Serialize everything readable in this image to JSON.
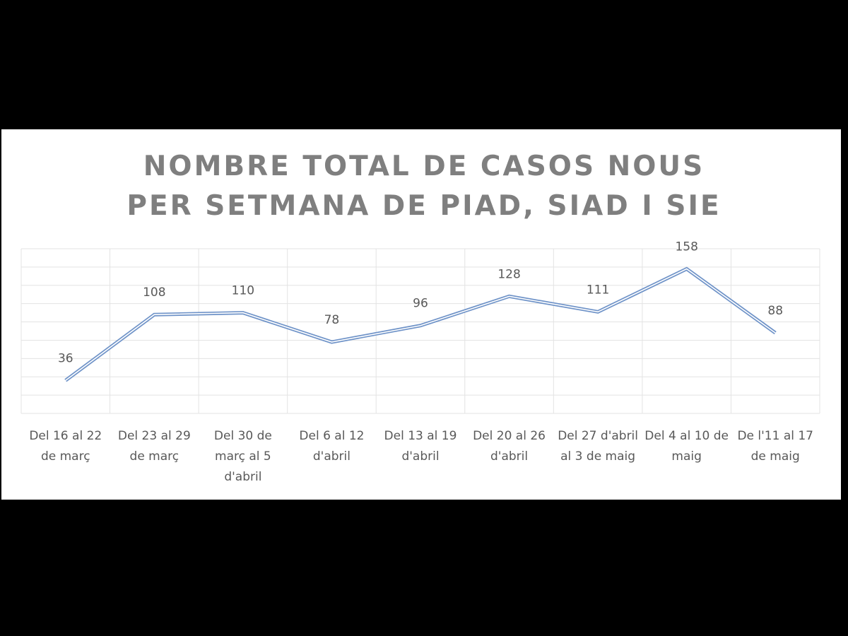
{
  "chart_data": {
    "type": "line",
    "title": "NOMBRE TOTAL DE CASOS NOUS PER SETMANA DE PIAD, SIAD I SIE",
    "categories": [
      "Del 16 al 22 de març",
      "Del 23 al 29 de març",
      "Del 30 de març al 5 d'abril",
      "Del 6 al 12 d'abril",
      "Del 13 al 19 d'abril",
      "Del 20 al 26 d'abril",
      "Del 27 d'abril al 3 de maig",
      "Del 4 al 10 de maig",
      "De l'11 al 17 de maig"
    ],
    "values": [
      36,
      108,
      110,
      78,
      96,
      128,
      111,
      158,
      88
    ],
    "color": "#6f93c8",
    "ylim": [
      0,
      180
    ],
    "yticks": [
      0,
      20,
      40,
      60,
      80,
      100,
      120,
      140,
      160,
      180
    ],
    "grid": true
  }
}
